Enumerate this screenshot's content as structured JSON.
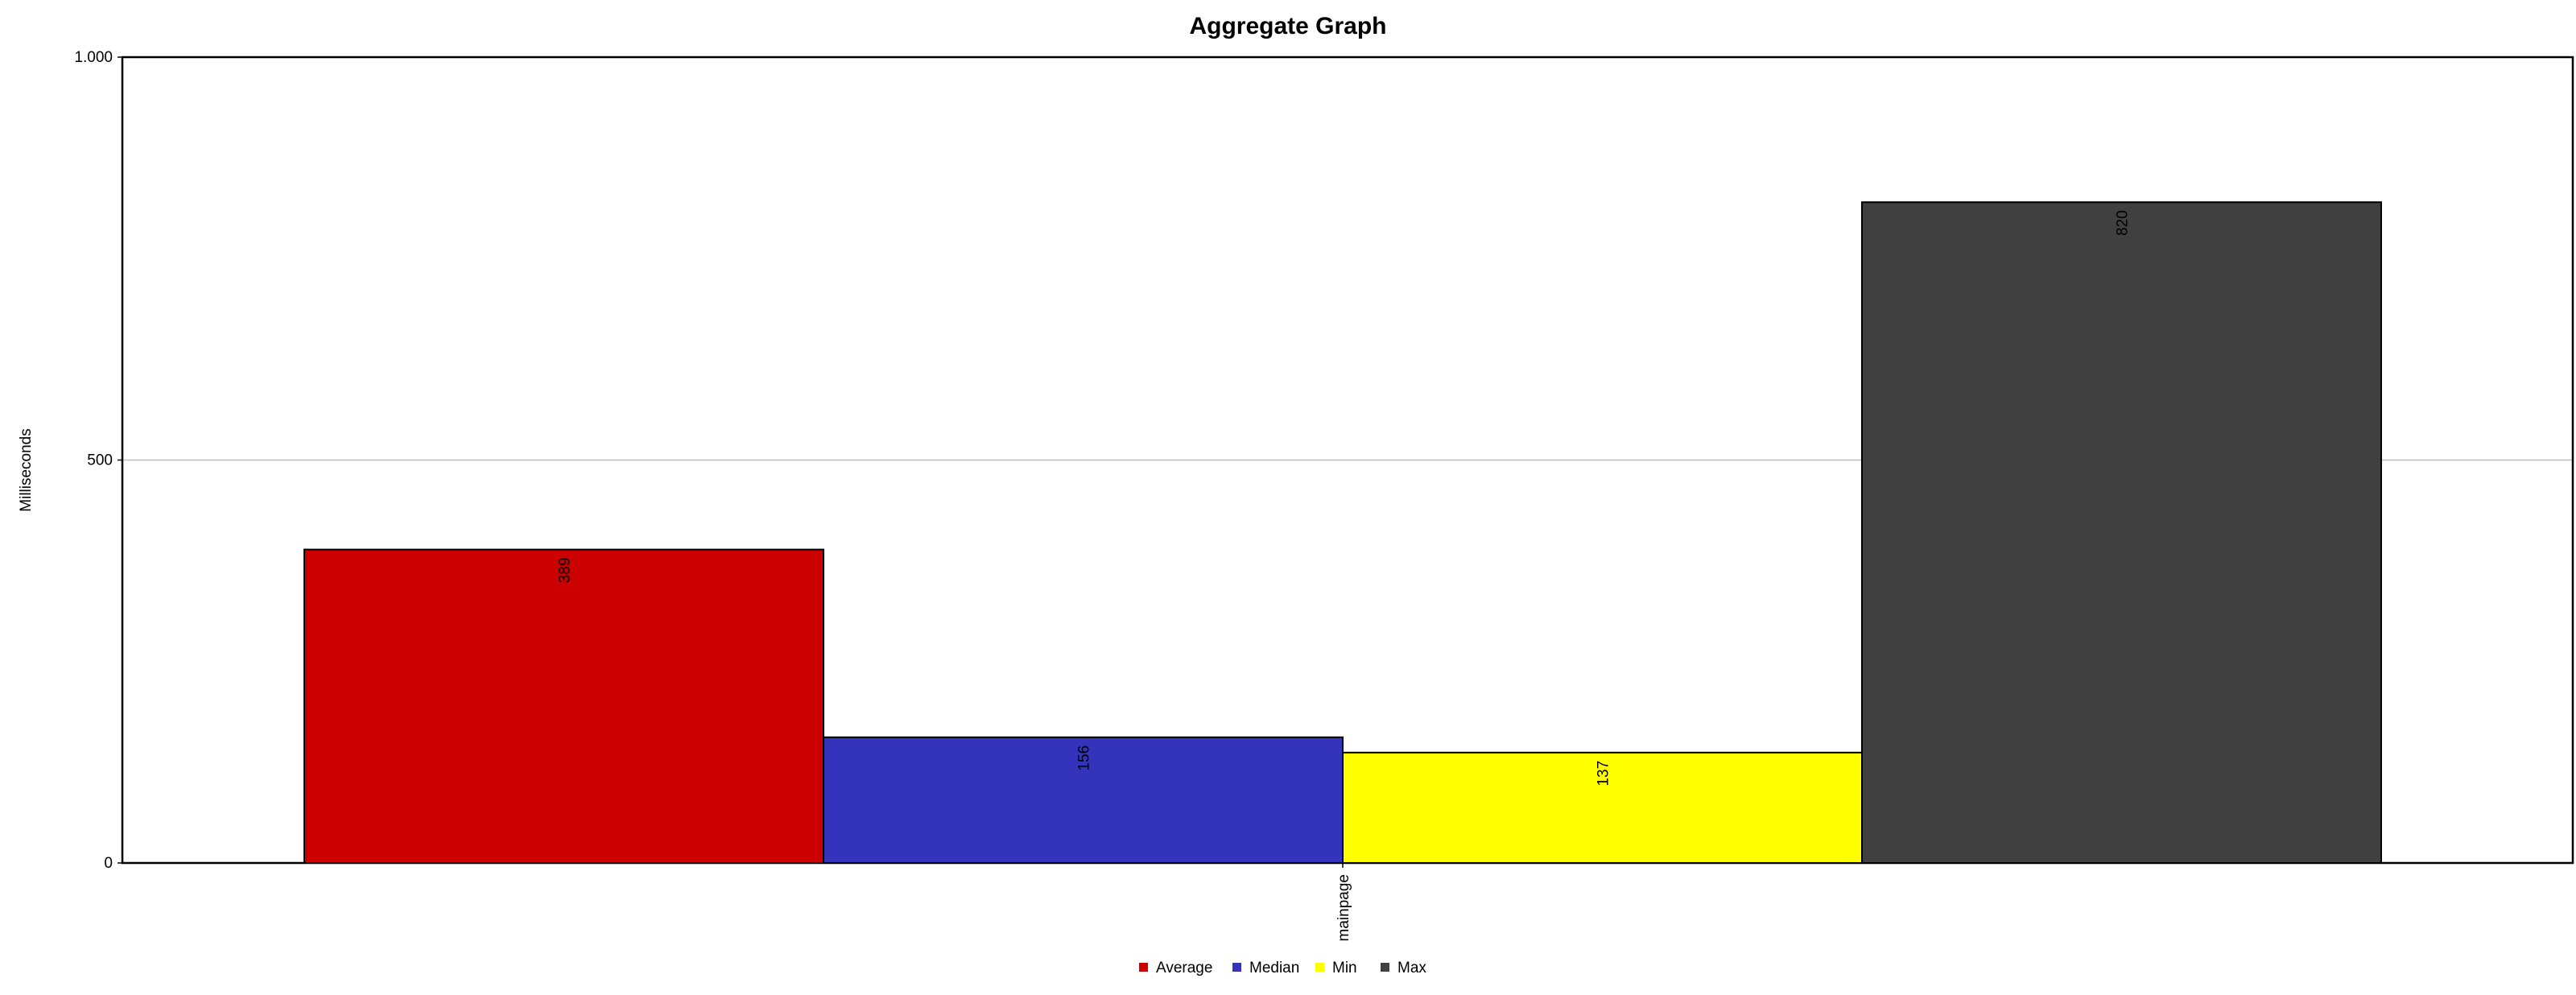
{
  "chart_data": {
    "type": "bar",
    "title": "Aggregate Graph",
    "xlabel": "",
    "ylabel": "Milliseconds",
    "categories": [
      "mainpage"
    ],
    "series": [
      {
        "name": "Average",
        "values": [
          389
        ],
        "color": "#cc0000"
      },
      {
        "name": "Median",
        "values": [
          156
        ],
        "color": "#3333bb"
      },
      {
        "name": "Min",
        "values": [
          137
        ],
        "color": "#ffff00"
      },
      {
        "name": "Max",
        "values": [
          820
        ],
        "color": "#404040"
      }
    ],
    "ylim": [
      0,
      1000
    ],
    "yticks": [
      {
        "value": 0,
        "label": "0"
      },
      {
        "value": 500,
        "label": "500"
      },
      {
        "value": 1000,
        "label": "1.000"
      }
    ],
    "grid": true,
    "legend_position": "bottom-center",
    "data_labels": true
  }
}
